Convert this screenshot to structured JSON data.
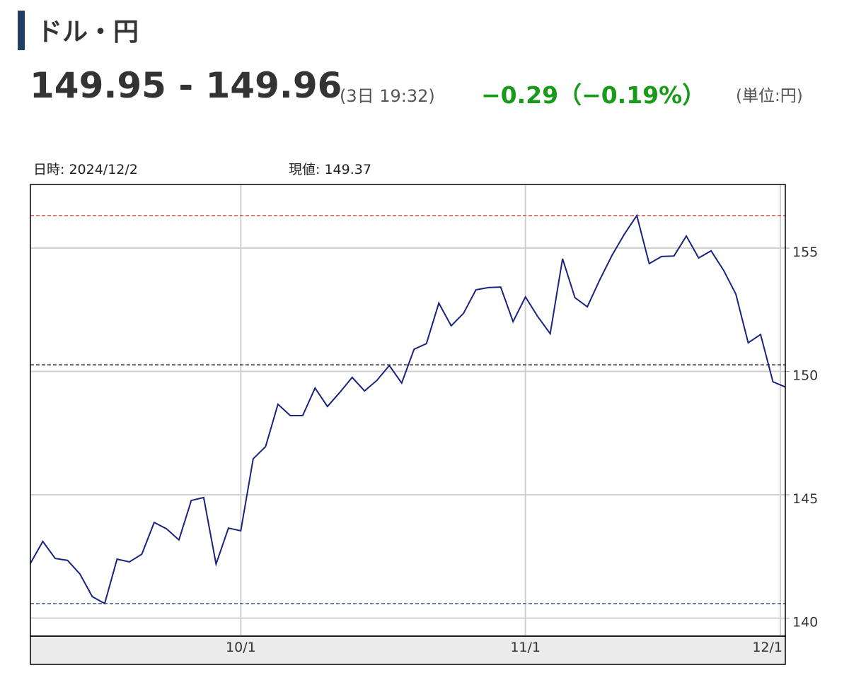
{
  "header": {
    "title": "ドル・円",
    "quote": "149.95 - 149.96",
    "time": "(3日 19:32)",
    "change": "−0.29（−0.19%）",
    "unit": "(単位:円)"
  },
  "info": {
    "date_label": "日時:",
    "date": "2024/12/2",
    "price_label": "現値:",
    "price": "149.37"
  },
  "chart_data": {
    "type": "line",
    "series": [
      {
        "color": "#1a237e",
        "values": [
          142.22,
          143.11,
          142.42,
          142.34,
          141.79,
          140.87,
          140.59,
          142.39,
          142.28,
          142.59,
          143.88,
          143.62,
          143.17,
          144.77,
          144.89,
          142.19,
          143.65,
          143.54,
          146.46,
          146.95,
          148.67,
          148.21,
          148.21,
          149.33,
          148.58,
          149.15,
          149.76,
          149.21,
          149.64,
          150.24,
          149.53,
          150.9,
          151.13,
          152.77,
          151.85,
          152.36,
          153.31,
          153.4,
          153.42,
          152.02,
          153.02,
          152.22,
          151.53,
          154.57,
          152.99,
          152.62,
          153.71,
          154.71,
          155.57,
          156.32,
          154.37,
          154.66,
          154.68,
          155.49,
          154.6,
          154.89,
          154.11,
          153.14,
          151.16,
          151.5,
          149.58,
          149.37
        ]
      }
    ],
    "xlim": [
      0,
      61
    ],
    "xticks": [
      {
        "value": 17,
        "label": "10/1"
      },
      {
        "value": 40,
        "label": "11/1"
      },
      {
        "value": 60.6,
        "label": "12/1"
      }
    ],
    "ylim": [
      139.27,
      157.58
    ],
    "yticks": [
      140,
      145,
      150,
      155
    ],
    "reference_lines": [
      {
        "value": 156.32,
        "color": "#c62828"
      },
      {
        "value": 150.27,
        "color": "#000000"
      },
      {
        "value": 140.59,
        "color": "#2c4f7c"
      }
    ],
    "grid": true
  }
}
